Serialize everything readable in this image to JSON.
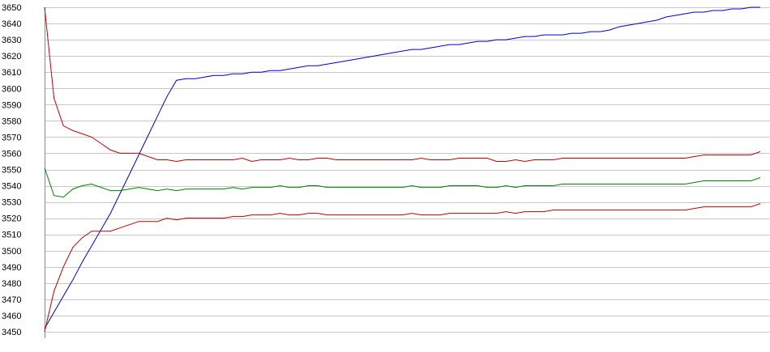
{
  "chart_data": {
    "type": "line",
    "title": "",
    "xlabel": "",
    "ylabel": "",
    "ylim": [
      3450,
      3650
    ],
    "yticks": [
      3450,
      3460,
      3470,
      3480,
      3490,
      3500,
      3510,
      3520,
      3530,
      3540,
      3550,
      3560,
      3570,
      3580,
      3590,
      3600,
      3610,
      3620,
      3630,
      3640,
      3650
    ],
    "grid": true,
    "legend": "none",
    "x": [
      0,
      1,
      2,
      3,
      4,
      5,
      6,
      7,
      8,
      9,
      10,
      11,
      12,
      13,
      14,
      15,
      16,
      17,
      18,
      19,
      20,
      21,
      22,
      23,
      24,
      25,
      26,
      27,
      28,
      29,
      30,
      31,
      32,
      33,
      34,
      35,
      36,
      37,
      38,
      39,
      40,
      41,
      42,
      43,
      44,
      45,
      46,
      47,
      48,
      49,
      50,
      51,
      52,
      53,
      54,
      55,
      56,
      57,
      58,
      59,
      60,
      61,
      62,
      63,
      64,
      65,
      66,
      67,
      68,
      69,
      70,
      71,
      72,
      73,
      74,
      75,
      76
    ],
    "series": [
      {
        "color": "#0000cc",
        "values": [
          3452,
          3462,
          3472,
          3482,
          3493,
          3503,
          3513,
          3523,
          3535,
          3547,
          3559,
          3571,
          3583,
          3595,
          3605,
          3606,
          3606,
          3607,
          3608,
          3608,
          3609,
          3609,
          3610,
          3610,
          3611,
          3611,
          3612,
          3613,
          3614,
          3614,
          3615,
          3616,
          3617,
          3618,
          3619,
          3620,
          3621,
          3622,
          3623,
          3624,
          3624,
          3625,
          3626,
          3627,
          3627,
          3628,
          3629,
          3629,
          3630,
          3630,
          3631,
          3632,
          3632,
          3633,
          3633,
          3633,
          3634,
          3634,
          3635,
          3635,
          3636,
          3638,
          3639,
          3640,
          3641,
          3642,
          3644,
          3645,
          3646,
          3647,
          3647,
          3648,
          3648,
          3649,
          3649,
          3650,
          3650
        ]
      },
      {
        "color": "#c00000",
        "values": [
          3650,
          3594,
          3577,
          3574,
          3572,
          3570,
          3566,
          3562,
          3560,
          3560,
          3560,
          3558,
          3556,
          3556,
          3555,
          3556,
          3556,
          3556,
          3556,
          3556,
          3556,
          3557,
          3555,
          3556,
          3556,
          3556,
          3557,
          3556,
          3556,
          3557,
          3557,
          3556,
          3556,
          3556,
          3556,
          3556,
          3556,
          3556,
          3556,
          3556,
          3557,
          3556,
          3556,
          3556,
          3557,
          3557,
          3557,
          3557,
          3555,
          3555,
          3556,
          3555,
          3556,
          3556,
          3556,
          3557,
          3557,
          3557,
          3557,
          3557,
          3557,
          3557,
          3557,
          3557,
          3557,
          3557,
          3557,
          3557,
          3557,
          3558,
          3559,
          3559,
          3559,
          3559,
          3559,
          3559,
          3561
        ]
      },
      {
        "color": "#008000",
        "values": [
          3551,
          3534,
          3533,
          3538,
          3540,
          3541,
          3539,
          3537,
          3537,
          3538,
          3539,
          3538,
          3537,
          3538,
          3537,
          3538,
          3538,
          3538,
          3538,
          3538,
          3539,
          3538,
          3539,
          3539,
          3539,
          3540,
          3539,
          3539,
          3540,
          3540,
          3539,
          3539,
          3539,
          3539,
          3539,
          3539,
          3539,
          3539,
          3539,
          3540,
          3539,
          3539,
          3539,
          3540,
          3540,
          3540,
          3540,
          3539,
          3539,
          3540,
          3539,
          3540,
          3540,
          3540,
          3540,
          3541,
          3541,
          3541,
          3541,
          3541,
          3541,
          3541,
          3541,
          3541,
          3541,
          3541,
          3541,
          3541,
          3541,
          3542,
          3543,
          3543,
          3543,
          3543,
          3543,
          3543,
          3545
        ]
      },
      {
        "color": "#c00000",
        "values": [
          3450,
          3475,
          3490,
          3502,
          3508,
          3512,
          3512,
          3512,
          3514,
          3516,
          3518,
          3518,
          3518,
          3520,
          3519,
          3520,
          3520,
          3520,
          3520,
          3520,
          3521,
          3521,
          3522,
          3522,
          3522,
          3523,
          3522,
          3522,
          3523,
          3523,
          3522,
          3522,
          3522,
          3522,
          3522,
          3522,
          3522,
          3522,
          3522,
          3523,
          3522,
          3522,
          3522,
          3523,
          3523,
          3523,
          3523,
          3523,
          3523,
          3524,
          3523,
          3524,
          3524,
          3524,
          3525,
          3525,
          3525,
          3525,
          3525,
          3525,
          3525,
          3525,
          3525,
          3525,
          3525,
          3525,
          3525,
          3525,
          3525,
          3526,
          3527,
          3527,
          3527,
          3527,
          3527,
          3527,
          3529
        ]
      }
    ]
  }
}
